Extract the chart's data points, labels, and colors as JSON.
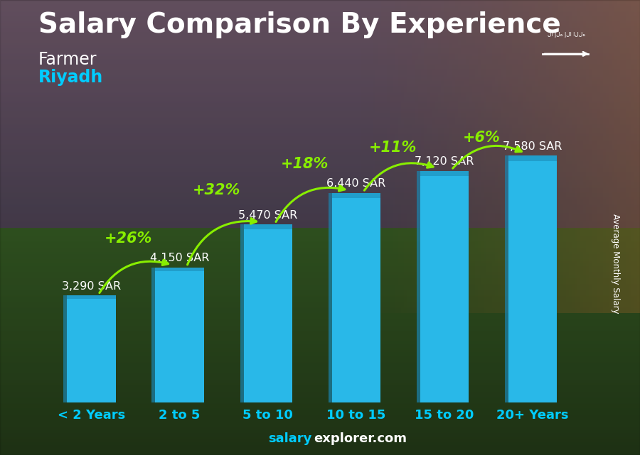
{
  "title": "Salary Comparison By Experience",
  "subtitle1": "Farmer",
  "subtitle2": "Riyadh",
  "categories": [
    "< 2 Years",
    "2 to 5",
    "5 to 10",
    "10 to 15",
    "15 to 20",
    "20+ Years"
  ],
  "values": [
    3290,
    4150,
    5470,
    6440,
    7120,
    7580
  ],
  "value_labels": [
    "3,290 SAR",
    "4,150 SAR",
    "5,470 SAR",
    "6,440 SAR",
    "7,120 SAR",
    "7,580 SAR"
  ],
  "pct_labels": [
    "+26%",
    "+32%",
    "+18%",
    "+11%",
    "+6%"
  ],
  "bar_color_main": "#29b8e8",
  "bar_color_side": "#1a85b0",
  "bar_color_top": "#20a0cc",
  "title_color": "#ffffff",
  "subtitle1_color": "#ffffff",
  "subtitle2_color": "#00ccff",
  "value_label_color": "#ffffff",
  "pct_color": "#88ee00",
  "arrow_color": "#88ee00",
  "xlabel_color": "#00ccff",
  "footer_salary_color": "#00ccff",
  "footer_explorer_color": "#ffffff",
  "ylabel_text": "Average Monthly Salary",
  "ylabel_color": "#ffffff",
  "ylim": [
    0,
    9500
  ],
  "flag_bg": "#3cb043",
  "title_fontsize": 28,
  "subtitle1_fontsize": 17,
  "subtitle2_fontsize": 17,
  "bar_width": 0.55,
  "bg_sky_top": "#5a5060",
  "bg_sky_bottom": "#7a6a50",
  "bg_field_top": "#4a6030",
  "bg_field_bottom": "#2a4018",
  "bg_right_warm": "#8a6040"
}
